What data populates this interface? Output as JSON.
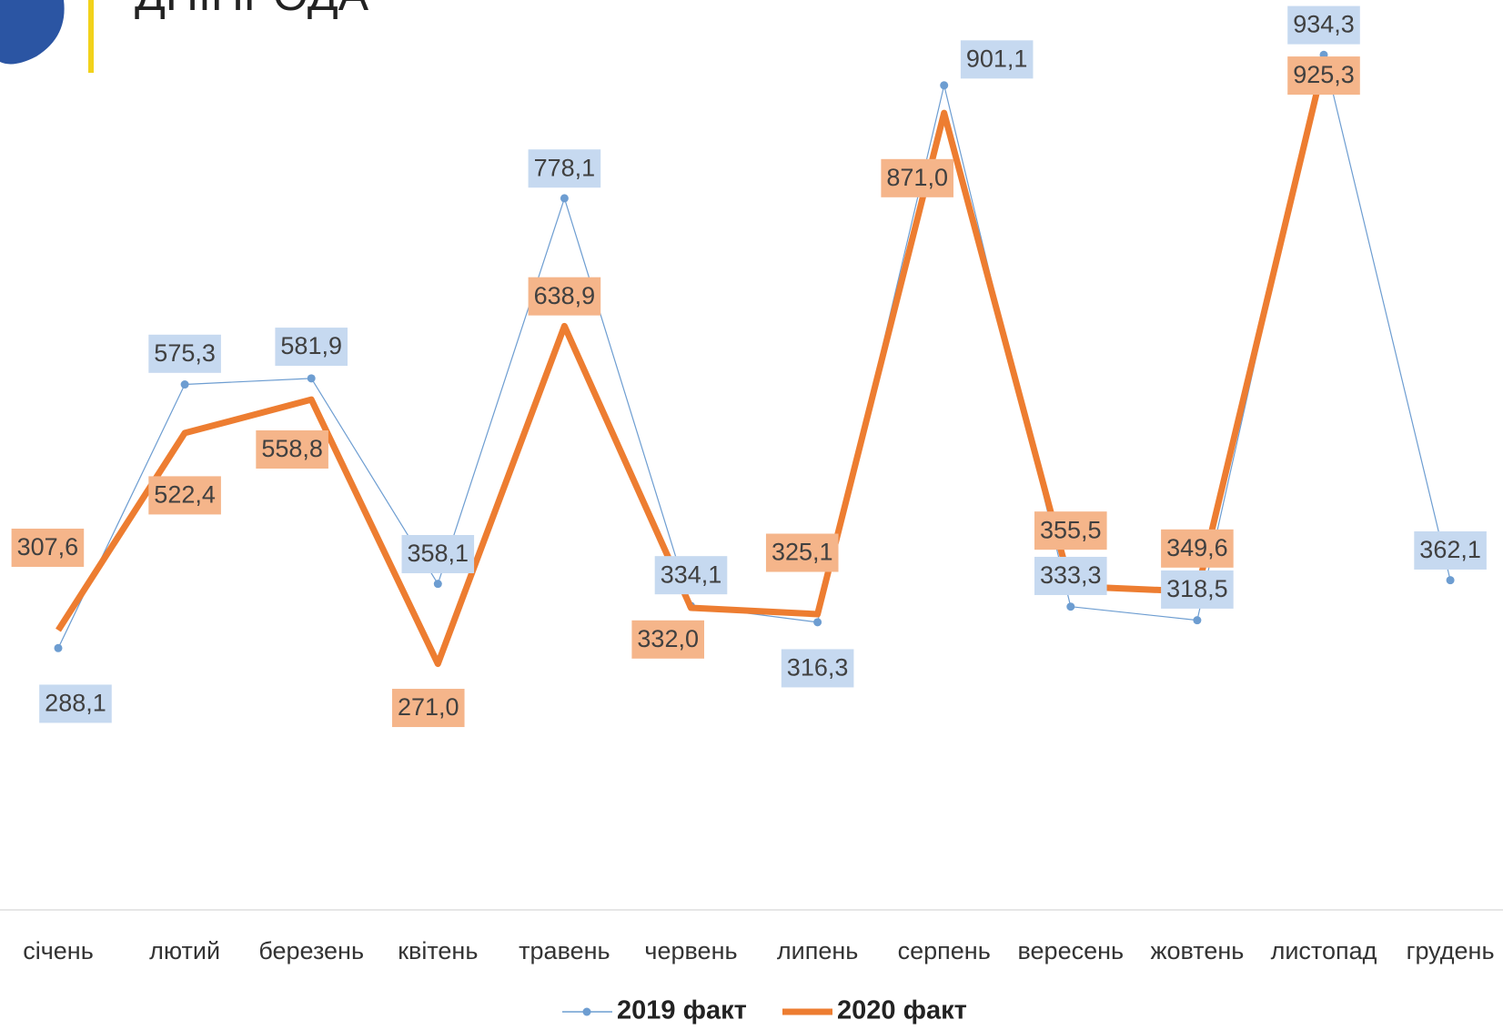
{
  "chart_data": {
    "type": "line",
    "title": "ДНІПРОДА",
    "categories": [
      "січень",
      "лютий",
      "березень",
      "квітень",
      "травень",
      "червень",
      "липень",
      "серпень",
      "вересень",
      "жовтень",
      "листопад",
      "грудень"
    ],
    "ylim": [
      0,
      1000
    ],
    "series": [
      {
        "name": "2019 факт",
        "color": "#6d9dd1",
        "values": [
          288.1,
          575.3,
          581.9,
          358.1,
          778.1,
          334.1,
          316.3,
          901.1,
          333.3,
          318.5,
          934.3,
          362.1
        ],
        "value_labels": [
          "288,1",
          "575,3",
          "581,9",
          "358,1",
          "778,1",
          "334,1",
          "316,3",
          "901,1",
          "333,3",
          "318,5",
          "934,3",
          "362,1"
        ]
      },
      {
        "name": "2020 факт",
        "color": "#ed7d31",
        "values": [
          307.6,
          522.4,
          558.8,
          271.0,
          638.9,
          332.0,
          325.1,
          871.0,
          355.5,
          349.6,
          925.3,
          null
        ],
        "value_labels": [
          "307,6",
          "522,4",
          "558,8",
          "271,0",
          "638,9",
          "332,0",
          "325,1",
          "871,0",
          "355,5",
          "349,6",
          "925,3",
          null
        ]
      }
    ]
  }
}
